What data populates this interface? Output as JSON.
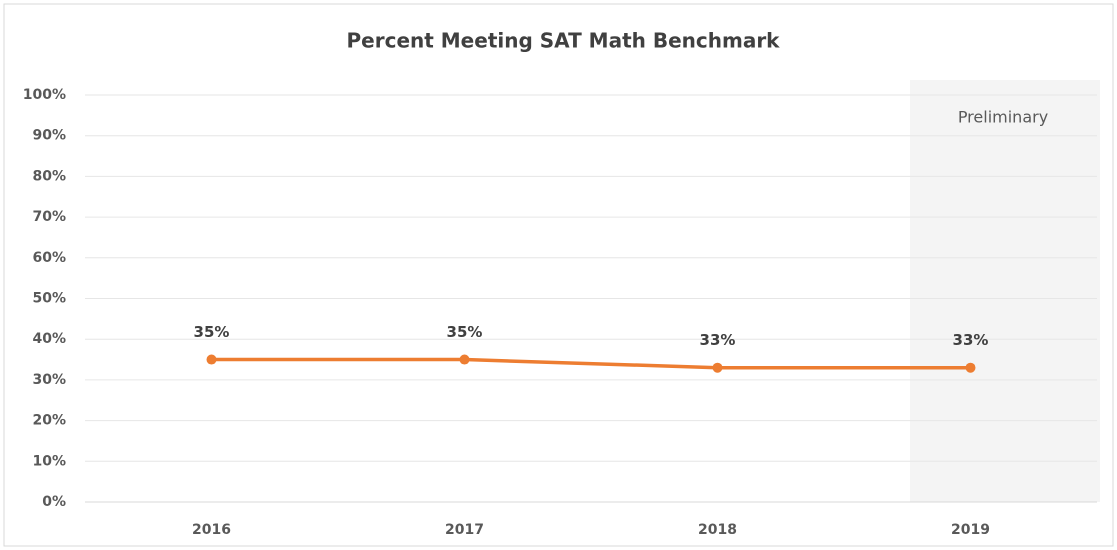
{
  "chart_data": {
    "type": "line",
    "title": "Percent Meeting SAT Math Benchmark",
    "categories": [
      "2016",
      "2017",
      "2018",
      "2019"
    ],
    "series": [
      {
        "name": "Percent Meeting SAT Math Benchmark",
        "color": "#ed7d31",
        "values": [
          35,
          35,
          33,
          33
        ],
        "value_labels": [
          "35%",
          "35%",
          "33%",
          "33%"
        ]
      }
    ],
    "ylim": [
      0,
      100
    ],
    "yticks": [
      {
        "value": 0,
        "label": "0%"
      },
      {
        "value": 10,
        "label": "10%"
      },
      {
        "value": 20,
        "label": "20%"
      },
      {
        "value": 30,
        "label": "30%"
      },
      {
        "value": 40,
        "label": "40%"
      },
      {
        "value": 50,
        "label": "50%"
      },
      {
        "value": 60,
        "label": "60%"
      },
      {
        "value": 70,
        "label": "70%"
      },
      {
        "value": 80,
        "label": "80%"
      },
      {
        "value": 90,
        "label": "90%"
      },
      {
        "value": 100,
        "label": "100%"
      }
    ],
    "grid": true,
    "annotations": [
      "Preliminary"
    ]
  }
}
